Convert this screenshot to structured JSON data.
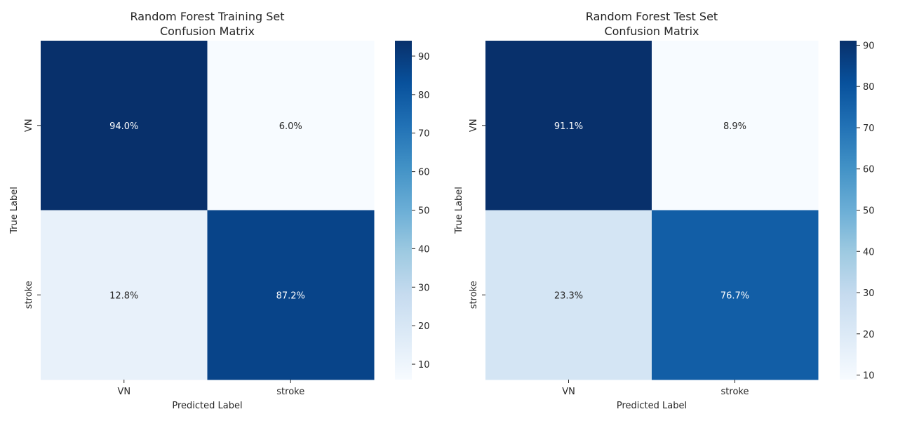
{
  "chart_data": [
    {
      "type": "heatmap",
      "title": "Random Forest Training Set\nConfusion Matrix",
      "xlabel": "Predicted Label",
      "ylabel": "True Label",
      "x_categories": [
        "VN",
        "stroke"
      ],
      "y_categories": [
        "VN",
        "stroke"
      ],
      "values": [
        [
          94.0,
          6.0
        ],
        [
          12.8,
          87.2
        ]
      ],
      "annotations": [
        [
          "94.0%",
          "6.0%"
        ],
        [
          "12.8%",
          "87.2%"
        ]
      ],
      "colormap": "Blues",
      "colorbar": {
        "range": [
          6.0,
          94.0
        ],
        "ticks": [
          10,
          20,
          30,
          40,
          50,
          60,
          70,
          80,
          90
        ]
      }
    },
    {
      "type": "heatmap",
      "title": "Random Forest Test Set\nConfusion Matrix",
      "xlabel": "Predicted Label",
      "ylabel": "True Label",
      "x_categories": [
        "VN",
        "stroke"
      ],
      "y_categories": [
        "VN",
        "stroke"
      ],
      "values": [
        [
          91.1,
          8.9
        ],
        [
          23.3,
          76.7
        ]
      ],
      "annotations": [
        [
          "91.1%",
          "8.9%"
        ],
        [
          "23.3%",
          "76.7%"
        ]
      ],
      "colormap": "Blues",
      "colorbar": {
        "range": [
          8.9,
          91.1
        ],
        "ticks": [
          10,
          20,
          30,
          40,
          50,
          60,
          70,
          80,
          90
        ]
      }
    }
  ]
}
